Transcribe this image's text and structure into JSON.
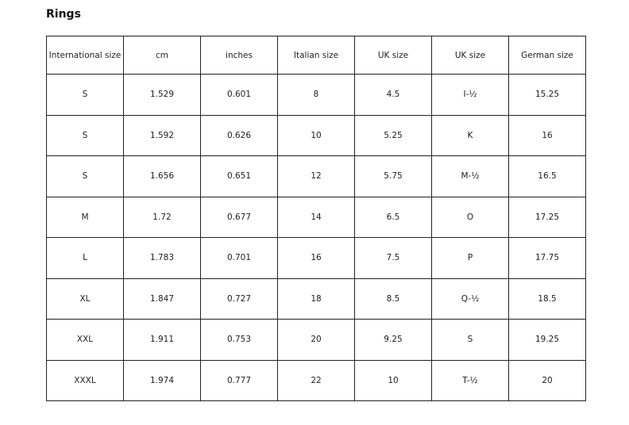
{
  "title": "Rings",
  "headers": [
    "International size",
    "cm",
    "inches",
    "Italian size",
    "UK size",
    "UK size",
    "German size"
  ],
  "rows": [
    [
      "S",
      "1.529",
      "0.601",
      "8",
      "4.5",
      "I-½",
      "15.25"
    ],
    [
      "S",
      "1.592",
      "0.626",
      "10",
      "5.25",
      "K",
      "16"
    ],
    [
      "S",
      "1.656",
      "0.651",
      "12",
      "5.75",
      "M-½",
      "16.5"
    ],
    [
      "M",
      "1.72",
      "0.677",
      "14",
      "6.5",
      "O",
      "17.25"
    ],
    [
      "L",
      "1.783",
      "0.701",
      "16",
      "7.5",
      "P",
      "17.75"
    ],
    [
      "XL",
      "1.847",
      "0.727",
      "18",
      "8.5",
      "Q-½",
      "18.5"
    ],
    [
      "XXL",
      "1.911",
      "0.753",
      "20",
      "9.25",
      "S",
      "19.25"
    ],
    [
      "XXXL",
      "1.974",
      "0.777",
      "22",
      "10",
      "T-½",
      "20"
    ]
  ]
}
